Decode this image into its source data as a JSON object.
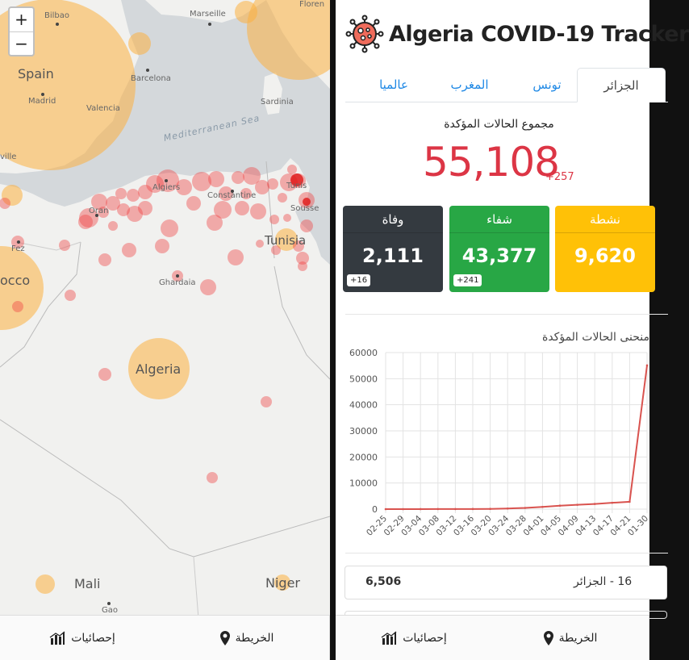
{
  "map": {
    "zoom_in": "+",
    "zoom_out": "−",
    "labels": {
      "bilbao": "Bilbao",
      "marseille": "Marseille",
      "florence": "Floren",
      "spain": "Spain",
      "madrid": "Madrid",
      "barcelona": "Barcelona",
      "valencia": "Valencia",
      "sardinia": "Sardinia",
      "mediterranean": "Mediterranean Sea",
      "seville": "ville",
      "algiers": "Algiers",
      "constantine": "Constantine",
      "tunis": "Tunis",
      "sousse": "Sousse",
      "oran": "Oran",
      "fez": "Fez",
      "tunisia": "Tunisia",
      "morocco": "occo",
      "ghardaia": "Ghardaia",
      "algeria": "Algeria",
      "mali": "Mali",
      "niger": "Niger",
      "gao": "Gao"
    }
  },
  "nav": {
    "stats_label": "إحصائيات",
    "map_label": "الخريطة"
  },
  "app": {
    "title": "Algeria COVID-19 Tracker",
    "tabs": [
      "الجزائر",
      "تونس",
      "المغرب",
      "عالميا"
    ],
    "total_title": "مجموع الحالات المؤكدة",
    "total_value": "55,108",
    "total_delta": "+257",
    "cards": {
      "deaths": {
        "label": "وفاة",
        "value": "2,111",
        "delta": "+16",
        "color": "#343a40"
      },
      "recovered": {
        "label": "شفاء",
        "value": "43,377",
        "delta": "+241",
        "color": "#28a745"
      },
      "active": {
        "label": "نشطة",
        "value": "9,620",
        "color": "#ffc107"
      }
    },
    "chart_title": "منحنى الحالات المؤكدة",
    "list": [
      {
        "name": "16 - الجزائر",
        "count": "6,506"
      }
    ]
  },
  "chart_data": {
    "type": "line",
    "title": "منحنى الحالات المؤكدة",
    "x": [
      "02-25",
      "02-29",
      "03-04",
      "03-08",
      "03-12",
      "03-16",
      "03-20",
      "03-24",
      "03-28",
      "04-01",
      "04-05",
      "04-09",
      "04-13",
      "04-17",
      "04-21",
      "01-30"
    ],
    "series": [
      {
        "values": [
          1,
          1,
          5,
          20,
          26,
          54,
          90,
          230,
          454,
          847,
          1320,
          1666,
          1983,
          2418,
          2811,
          55108
        ],
        "color": "#d9534f"
      }
    ],
    "yticks": [
      0,
      10000,
      20000,
      30000,
      40000,
      50000,
      60000
    ],
    "ylim": [
      0,
      60000
    ],
    "grid": true
  }
}
